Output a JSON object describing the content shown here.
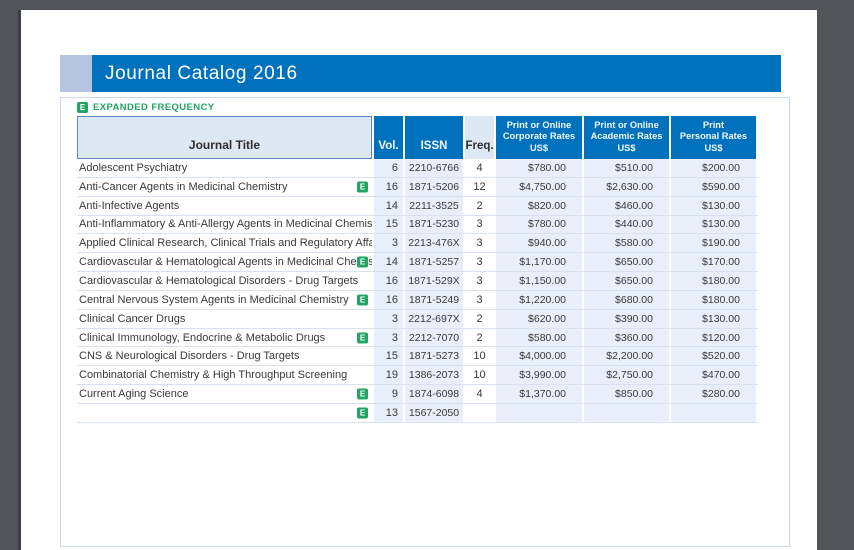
{
  "viewer": {
    "background_color": "#515459",
    "page_shadow_color": "#3c3f43"
  },
  "header": {
    "title": "Journal Catalog 2016",
    "bar_color": "#0071bc",
    "accent_square_color": "#b6c3e1"
  },
  "legend": {
    "badge": "E",
    "label": "EXPANDED FREQUENCY",
    "color": "#24a364"
  },
  "table": {
    "columns": [
      {
        "key": "title",
        "label": "Journal Title"
      },
      {
        "key": "vol",
        "label": "Vol."
      },
      {
        "key": "issn",
        "label": "ISSN"
      },
      {
        "key": "freq",
        "label": "Freq."
      },
      {
        "key": "corporate",
        "label_line1": "Print or Online",
        "label_line2": "Corporate Rates US$"
      },
      {
        "key": "academic",
        "label_line1": "Print or Online",
        "label_line2": "Academic Rates US$"
      },
      {
        "key": "personal",
        "label_line1": "Print",
        "label_line2": "Personal Rates US$"
      }
    ],
    "rows": [
      {
        "title": "Adolescent Psychiatry",
        "e": false,
        "vol": "6",
        "issn": "2210-6766",
        "freq": "4",
        "corporate": "$780.00",
        "academic": "$510.00",
        "personal": "$200.00"
      },
      {
        "title": "Anti-Cancer Agents in Medicinal Chemistry",
        "e": true,
        "vol": "16",
        "issn": "1871-5206",
        "freq": "12",
        "corporate": "$4,750.00",
        "academic": "$2,630.00",
        "personal": "$590.00"
      },
      {
        "title": "Anti-Infective Agents",
        "e": false,
        "vol": "14",
        "issn": "2211-3525",
        "freq": "2",
        "corporate": "$820.00",
        "academic": "$460.00",
        "personal": "$130.00"
      },
      {
        "title": "Anti-Inflammatory & Anti-Allergy Agents in Medicinal Chemistry",
        "e": false,
        "vol": "15",
        "issn": "1871-5230",
        "freq": "3",
        "corporate": "$780.00",
        "academic": "$440.00",
        "personal": "$130.00"
      },
      {
        "title": "Applied Clinical Research, Clinical Trials and Regulatory Affairs",
        "e": false,
        "vol": "3",
        "issn": "2213-476X",
        "freq": "3",
        "corporate": "$940.00",
        "academic": "$580.00",
        "personal": "$190.00"
      },
      {
        "title": "Cardiovascular & Hematological Agents in Medicinal Chemistry",
        "e": true,
        "vol": "14",
        "issn": "1871-5257",
        "freq": "3",
        "corporate": "$1,170.00",
        "academic": "$650.00",
        "personal": "$170.00"
      },
      {
        "title": "Cardiovascular & Hematological Disorders - Drug Targets",
        "e": false,
        "vol": "16",
        "issn": "1871-529X",
        "freq": "3",
        "corporate": "$1,150.00",
        "academic": "$650.00",
        "personal": "$180.00"
      },
      {
        "title": "Central Nervous System Agents in Medicinal Chemistry",
        "e": true,
        "vol": "16",
        "issn": "1871-5249",
        "freq": "3",
        "corporate": "$1,220.00",
        "academic": "$680.00",
        "personal": "$180.00"
      },
      {
        "title": "Clinical Cancer Drugs",
        "e": false,
        "vol": "3",
        "issn": "2212-697X",
        "freq": "2",
        "corporate": "$620.00",
        "academic": "$390.00",
        "personal": "$130.00"
      },
      {
        "title": "Clinical Immunology, Endocrine & Metabolic Drugs",
        "e": true,
        "vol": "3",
        "issn": "2212-7070",
        "freq": "2",
        "corporate": "$580.00",
        "academic": "$360.00",
        "personal": "$120.00"
      },
      {
        "title": "CNS & Neurological Disorders - Drug Targets",
        "e": false,
        "vol": "15",
        "issn": "1871-5273",
        "freq": "10",
        "corporate": "$4,000.00",
        "academic": "$2,200.00",
        "personal": "$520.00"
      },
      {
        "title": "Combinatorial Chemistry & High Throughput Screening",
        "e": false,
        "vol": "19",
        "issn": "1386-2073",
        "freq": "10",
        "corporate": "$3,990.00",
        "academic": "$2,750.00",
        "personal": "$470.00"
      },
      {
        "title": "Current Aging Science",
        "e": true,
        "vol": "9",
        "issn": "1874-6098",
        "freq": "4",
        "corporate": "$1,370.00",
        "academic": "$850.00",
        "personal": "$280.00"
      },
      {
        "title": "",
        "e": true,
        "vol": "13",
        "issn": "1567-2050",
        "freq": "",
        "corporate": "",
        "academic": "",
        "personal": ""
      }
    ]
  }
}
